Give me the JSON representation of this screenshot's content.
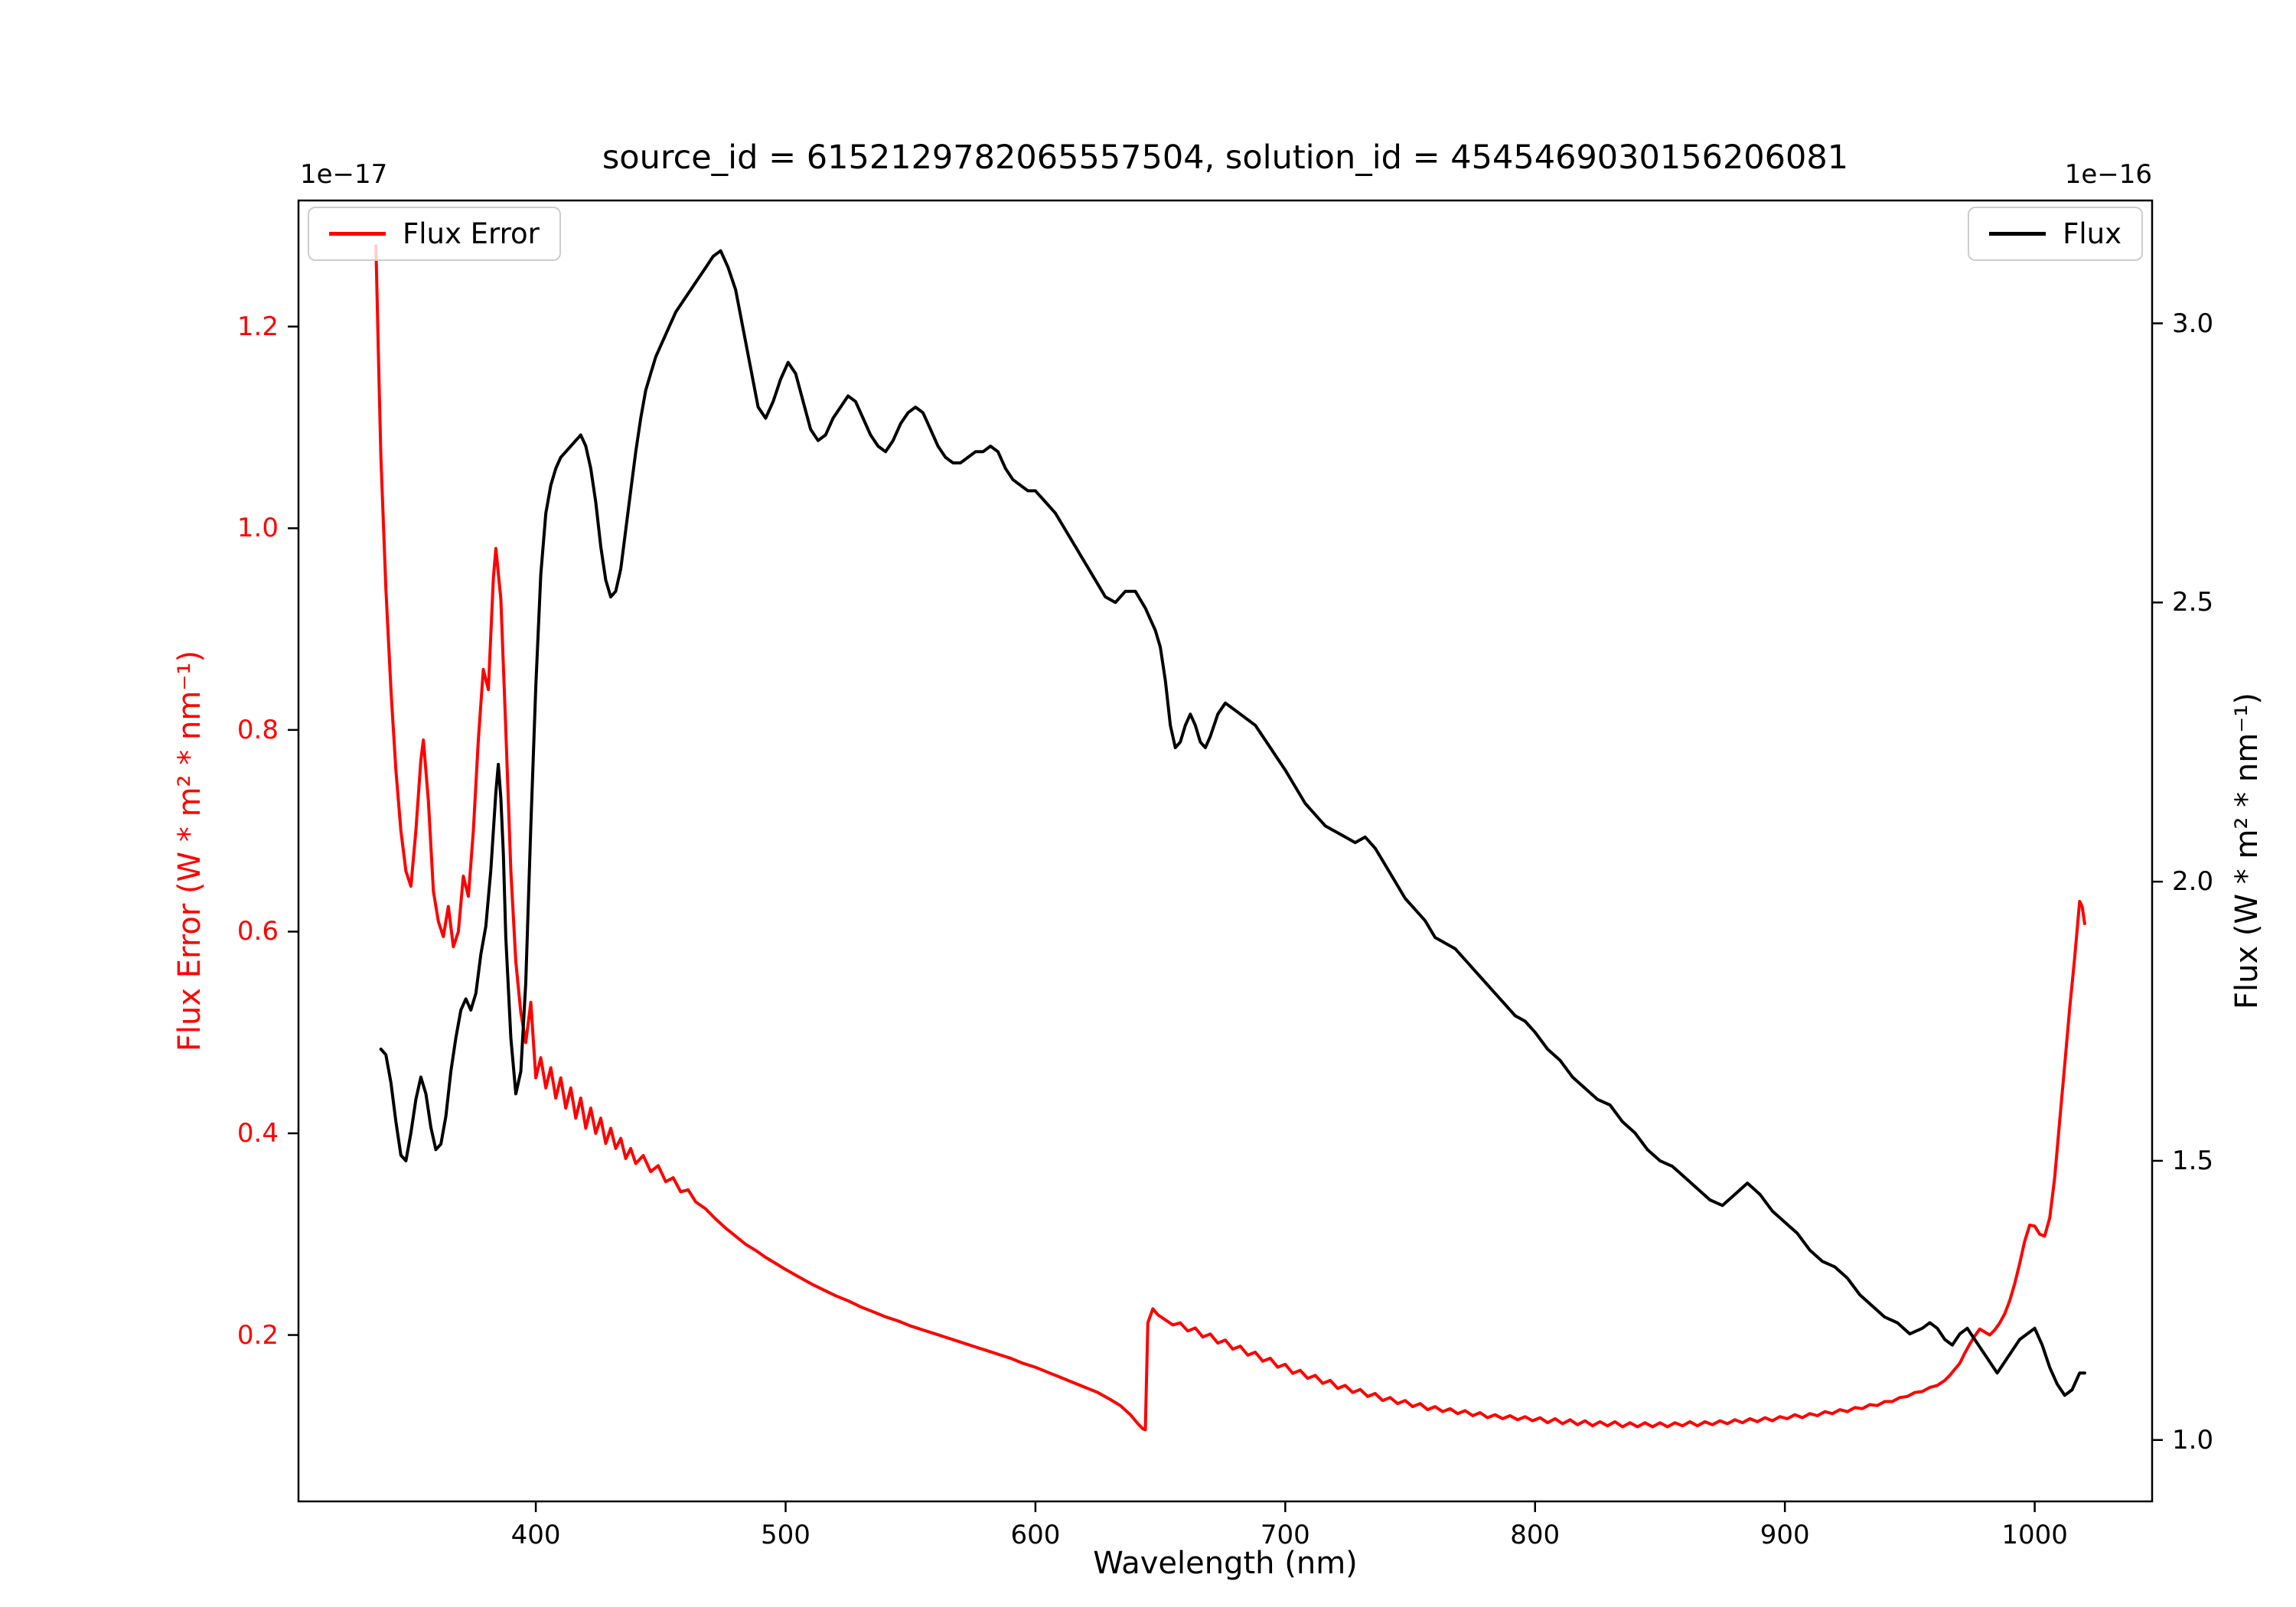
{
  "title": "source_id = 6152129782065557504, solution_id = 4545469030156206081",
  "axes": {
    "xlabel": "Wavelength (nm)",
    "ylabel_left": "Flux Error (W * m² * nm⁻¹)",
    "ylabel_right": "Flux (W * m² * nm⁻¹)",
    "offset_left": "1e−17",
    "offset_right": "1e−16"
  },
  "legend_left": {
    "label": "Flux Error",
    "color": "#ff0000"
  },
  "legend_right": {
    "label": "Flux",
    "color": "#000000"
  },
  "chart_data": {
    "type": "line",
    "title": "source_id = 6152129782065557504, solution_id = 4545469030156206081",
    "xlabel": "Wavelength (nm)",
    "ylabel_left": "Flux Error (W * m² * nm⁻¹)",
    "ylabel_right": "Flux (W * m² * nm⁻¹)",
    "left_scale_factor": "1e-17",
    "right_scale_factor": "1e-16",
    "grid": false,
    "legend_positions": [
      "upper left",
      "upper right"
    ],
    "xlim": [
      305,
      1047
    ],
    "ylim_left": [
      0.035,
      1.325
    ],
    "ylim_right": [
      0.89,
      3.22
    ],
    "xticks": [
      400,
      500,
      600,
      700,
      800,
      900,
      1000
    ],
    "yticks_left": [
      0.2,
      0.4,
      0.6,
      0.8,
      1.0,
      1.2
    ],
    "yticks_right": [
      1.0,
      1.5,
      2.0,
      2.5,
      3.0
    ],
    "series": [
      {
        "name": "Flux Error",
        "axis": "left",
        "color": "#ff0000",
        "x": [
          336,
          337,
          338,
          340,
          342,
          344,
          346,
          348,
          350,
          352,
          354,
          355,
          357,
          359,
          361,
          363,
          365,
          367,
          369,
          371,
          373,
          375,
          377,
          379,
          381,
          383,
          384,
          386,
          388,
          390,
          392,
          394,
          396,
          398,
          400,
          402,
          404,
          406,
          408,
          410,
          412,
          414,
          416,
          418,
          420,
          422,
          424,
          426,
          428,
          430,
          432,
          434,
          436,
          438,
          440,
          443,
          446,
          449,
          452,
          455,
          458,
          461,
          464,
          468,
          472,
          476,
          480,
          484,
          488,
          492,
          496,
          500,
          505,
          510,
          515,
          520,
          525,
          530,
          535,
          540,
          545,
          550,
          555,
          560,
          565,
          570,
          575,
          580,
          585,
          590,
          595,
          600,
          605,
          610,
          615,
          620,
          625,
          630,
          634,
          638,
          641,
          643,
          644,
          645,
          647,
          649,
          652,
          655,
          658,
          661,
          664,
          667,
          670,
          673,
          676,
          679,
          682,
          685,
          688,
          691,
          694,
          697,
          700,
          703,
          706,
          709,
          712,
          715,
          718,
          721,
          724,
          727,
          730,
          733,
          736,
          739,
          742,
          745,
          748,
          751,
          754,
          757,
          760,
          763,
          766,
          769,
          772,
          775,
          778,
          781,
          784,
          787,
          790,
          793,
          796,
          799,
          802,
          805,
          808,
          811,
          814,
          817,
          820,
          823,
          826,
          829,
          832,
          835,
          838,
          841,
          844,
          847,
          850,
          853,
          856,
          859,
          862,
          865,
          868,
          871,
          874,
          877,
          880,
          883,
          886,
          889,
          892,
          895,
          898,
          901,
          904,
          907,
          910,
          913,
          916,
          919,
          922,
          925,
          928,
          931,
          934,
          937,
          940,
          943,
          946,
          949,
          952,
          955,
          958,
          961,
          964,
          966,
          968,
          970,
          972,
          974,
          976,
          978,
          980,
          982,
          984,
          986,
          988,
          990,
          992,
          994,
          996,
          998,
          1000,
          1002,
          1004,
          1006,
          1008,
          1010,
          1012,
          1014,
          1016,
          1018,
          1019,
          1020
        ],
        "y": [
          1.28,
          1.17,
          1.07,
          0.94,
          0.84,
          0.76,
          0.7,
          0.66,
          0.645,
          0.7,
          0.77,
          0.79,
          0.73,
          0.64,
          0.61,
          0.595,
          0.625,
          0.585,
          0.6,
          0.655,
          0.635,
          0.7,
          0.79,
          0.86,
          0.84,
          0.95,
          0.98,
          0.93,
          0.8,
          0.66,
          0.57,
          0.52,
          0.49,
          0.53,
          0.455,
          0.475,
          0.445,
          0.465,
          0.435,
          0.455,
          0.425,
          0.445,
          0.415,
          0.435,
          0.405,
          0.425,
          0.4,
          0.415,
          0.39,
          0.405,
          0.385,
          0.395,
          0.375,
          0.385,
          0.37,
          0.378,
          0.362,
          0.368,
          0.352,
          0.356,
          0.342,
          0.344,
          0.332,
          0.325,
          0.315,
          0.306,
          0.298,
          0.29,
          0.284,
          0.277,
          0.271,
          0.265,
          0.258,
          0.251,
          0.245,
          0.239,
          0.234,
          0.228,
          0.223,
          0.218,
          0.214,
          0.209,
          0.205,
          0.201,
          0.197,
          0.193,
          0.189,
          0.185,
          0.181,
          0.177,
          0.172,
          0.168,
          0.163,
          0.158,
          0.153,
          0.148,
          0.143,
          0.136,
          0.13,
          0.121,
          0.112,
          0.107,
          0.106,
          0.212,
          0.226,
          0.22,
          0.215,
          0.21,
          0.212,
          0.204,
          0.207,
          0.198,
          0.201,
          0.192,
          0.195,
          0.186,
          0.189,
          0.18,
          0.183,
          0.174,
          0.177,
          0.168,
          0.171,
          0.162,
          0.165,
          0.157,
          0.16,
          0.152,
          0.155,
          0.147,
          0.15,
          0.143,
          0.146,
          0.139,
          0.142,
          0.135,
          0.138,
          0.132,
          0.135,
          0.129,
          0.132,
          0.126,
          0.129,
          0.124,
          0.127,
          0.122,
          0.125,
          0.12,
          0.123,
          0.118,
          0.121,
          0.117,
          0.12,
          0.116,
          0.119,
          0.115,
          0.118,
          0.113,
          0.117,
          0.112,
          0.116,
          0.111,
          0.115,
          0.11,
          0.114,
          0.11,
          0.114,
          0.109,
          0.113,
          0.109,
          0.113,
          0.109,
          0.113,
          0.109,
          0.113,
          0.11,
          0.114,
          0.11,
          0.114,
          0.111,
          0.115,
          0.112,
          0.116,
          0.113,
          0.117,
          0.114,
          0.118,
          0.115,
          0.119,
          0.117,
          0.121,
          0.118,
          0.122,
          0.12,
          0.124,
          0.122,
          0.126,
          0.124,
          0.128,
          0.127,
          0.131,
          0.13,
          0.134,
          0.134,
          0.138,
          0.139,
          0.143,
          0.144,
          0.148,
          0.15,
          0.155,
          0.16,
          0.166,
          0.172,
          0.182,
          0.191,
          0.199,
          0.206,
          0.203,
          0.2,
          0.205,
          0.212,
          0.221,
          0.234,
          0.251,
          0.271,
          0.293,
          0.309,
          0.308,
          0.3,
          0.298,
          0.316,
          0.356,
          0.412,
          0.468,
          0.524,
          0.574,
          0.63,
          0.625,
          0.608
        ]
      },
      {
        "name": "Flux",
        "axis": "right",
        "color": "#000000",
        "x": [
          338,
          340,
          342,
          344,
          346,
          348,
          350,
          352,
          354,
          356,
          358,
          360,
          362,
          364,
          366,
          368,
          370,
          372,
          374,
          376,
          378,
          380,
          382,
          384,
          385,
          386,
          387,
          388,
          390,
          392,
          394,
          396,
          398,
          400,
          402,
          404,
          406,
          408,
          410,
          412,
          414,
          416,
          418,
          420,
          422,
          424,
          426,
          428,
          430,
          432,
          434,
          436,
          438,
          440,
          442,
          444,
          446,
          448,
          450,
          453,
          456,
          459,
          462,
          465,
          468,
          471,
          474,
          477,
          480,
          483,
          486,
          489,
          492,
          495,
          498,
          501,
          504,
          507,
          510,
          513,
          516,
          519,
          522,
          525,
          528,
          531,
          534,
          537,
          540,
          543,
          546,
          549,
          552,
          555,
          558,
          561,
          564,
          567,
          570,
          573,
          576,
          579,
          582,
          585,
          588,
          591,
          594,
          597,
          600,
          604,
          608,
          612,
          616,
          620,
          624,
          628,
          632,
          636,
          640,
          644,
          648,
          650,
          652,
          654,
          656,
          658,
          660,
          662,
          664,
          666,
          668,
          670,
          673,
          676,
          679,
          682,
          685,
          688,
          691,
          694,
          697,
          700,
          704,
          708,
          712,
          716,
          720,
          724,
          728,
          732,
          736,
          740,
          744,
          748,
          752,
          756,
          760,
          764,
          768,
          772,
          776,
          780,
          784,
          788,
          792,
          796,
          800,
          805,
          810,
          815,
          820,
          825,
          830,
          835,
          840,
          845,
          850,
          855,
          860,
          865,
          870,
          875,
          880,
          885,
          890,
          895,
          900,
          905,
          910,
          915,
          920,
          925,
          930,
          935,
          940,
          945,
          950,
          955,
          958,
          961,
          964,
          967,
          970,
          973,
          976,
          979,
          982,
          985,
          988,
          991,
          994,
          997,
          1000,
          1003,
          1006,
          1009,
          1012,
          1015,
          1018,
          1020
        ],
        "y": [
          1.7,
          1.69,
          1.64,
          1.57,
          1.51,
          1.5,
          1.55,
          1.61,
          1.65,
          1.62,
          1.56,
          1.52,
          1.53,
          1.58,
          1.66,
          1.72,
          1.77,
          1.79,
          1.77,
          1.8,
          1.87,
          1.92,
          2.02,
          2.16,
          2.21,
          2.15,
          2.05,
          1.9,
          1.72,
          1.62,
          1.66,
          1.82,
          2.1,
          2.35,
          2.55,
          2.66,
          2.71,
          2.74,
          2.76,
          2.77,
          2.78,
          2.79,
          2.8,
          2.78,
          2.74,
          2.68,
          2.6,
          2.54,
          2.51,
          2.52,
          2.56,
          2.63,
          2.7,
          2.77,
          2.83,
          2.88,
          2.91,
          2.94,
          2.96,
          2.99,
          3.02,
          3.04,
          3.06,
          3.08,
          3.1,
          3.12,
          3.13,
          3.1,
          3.06,
          2.99,
          2.92,
          2.85,
          2.83,
          2.86,
          2.9,
          2.93,
          2.91,
          2.86,
          2.81,
          2.79,
          2.8,
          2.83,
          2.85,
          2.87,
          2.86,
          2.83,
          2.8,
          2.78,
          2.77,
          2.79,
          2.82,
          2.84,
          2.85,
          2.84,
          2.81,
          2.78,
          2.76,
          2.75,
          2.75,
          2.76,
          2.77,
          2.77,
          2.78,
          2.77,
          2.74,
          2.72,
          2.71,
          2.7,
          2.7,
          2.68,
          2.66,
          2.63,
          2.6,
          2.57,
          2.54,
          2.51,
          2.5,
          2.52,
          2.52,
          2.49,
          2.45,
          2.42,
          2.36,
          2.28,
          2.24,
          2.25,
          2.28,
          2.3,
          2.28,
          2.25,
          2.24,
          2.26,
          2.3,
          2.32,
          2.31,
          2.3,
          2.29,
          2.28,
          2.26,
          2.24,
          2.22,
          2.2,
          2.17,
          2.14,
          2.12,
          2.1,
          2.09,
          2.08,
          2.07,
          2.08,
          2.06,
          2.03,
          2.0,
          1.97,
          1.95,
          1.93,
          1.9,
          1.89,
          1.88,
          1.86,
          1.84,
          1.82,
          1.8,
          1.78,
          1.76,
          1.75,
          1.73,
          1.7,
          1.68,
          1.65,
          1.63,
          1.61,
          1.6,
          1.57,
          1.55,
          1.52,
          1.5,
          1.49,
          1.47,
          1.45,
          1.43,
          1.42,
          1.44,
          1.46,
          1.44,
          1.41,
          1.39,
          1.37,
          1.34,
          1.32,
          1.31,
          1.29,
          1.26,
          1.24,
          1.22,
          1.21,
          1.19,
          1.2,
          1.21,
          1.2,
          1.18,
          1.17,
          1.19,
          1.2,
          1.18,
          1.16,
          1.14,
          1.12,
          1.14,
          1.16,
          1.18,
          1.19,
          1.2,
          1.17,
          1.13,
          1.1,
          1.08,
          1.09,
          1.12,
          1.12
        ]
      }
    ]
  }
}
